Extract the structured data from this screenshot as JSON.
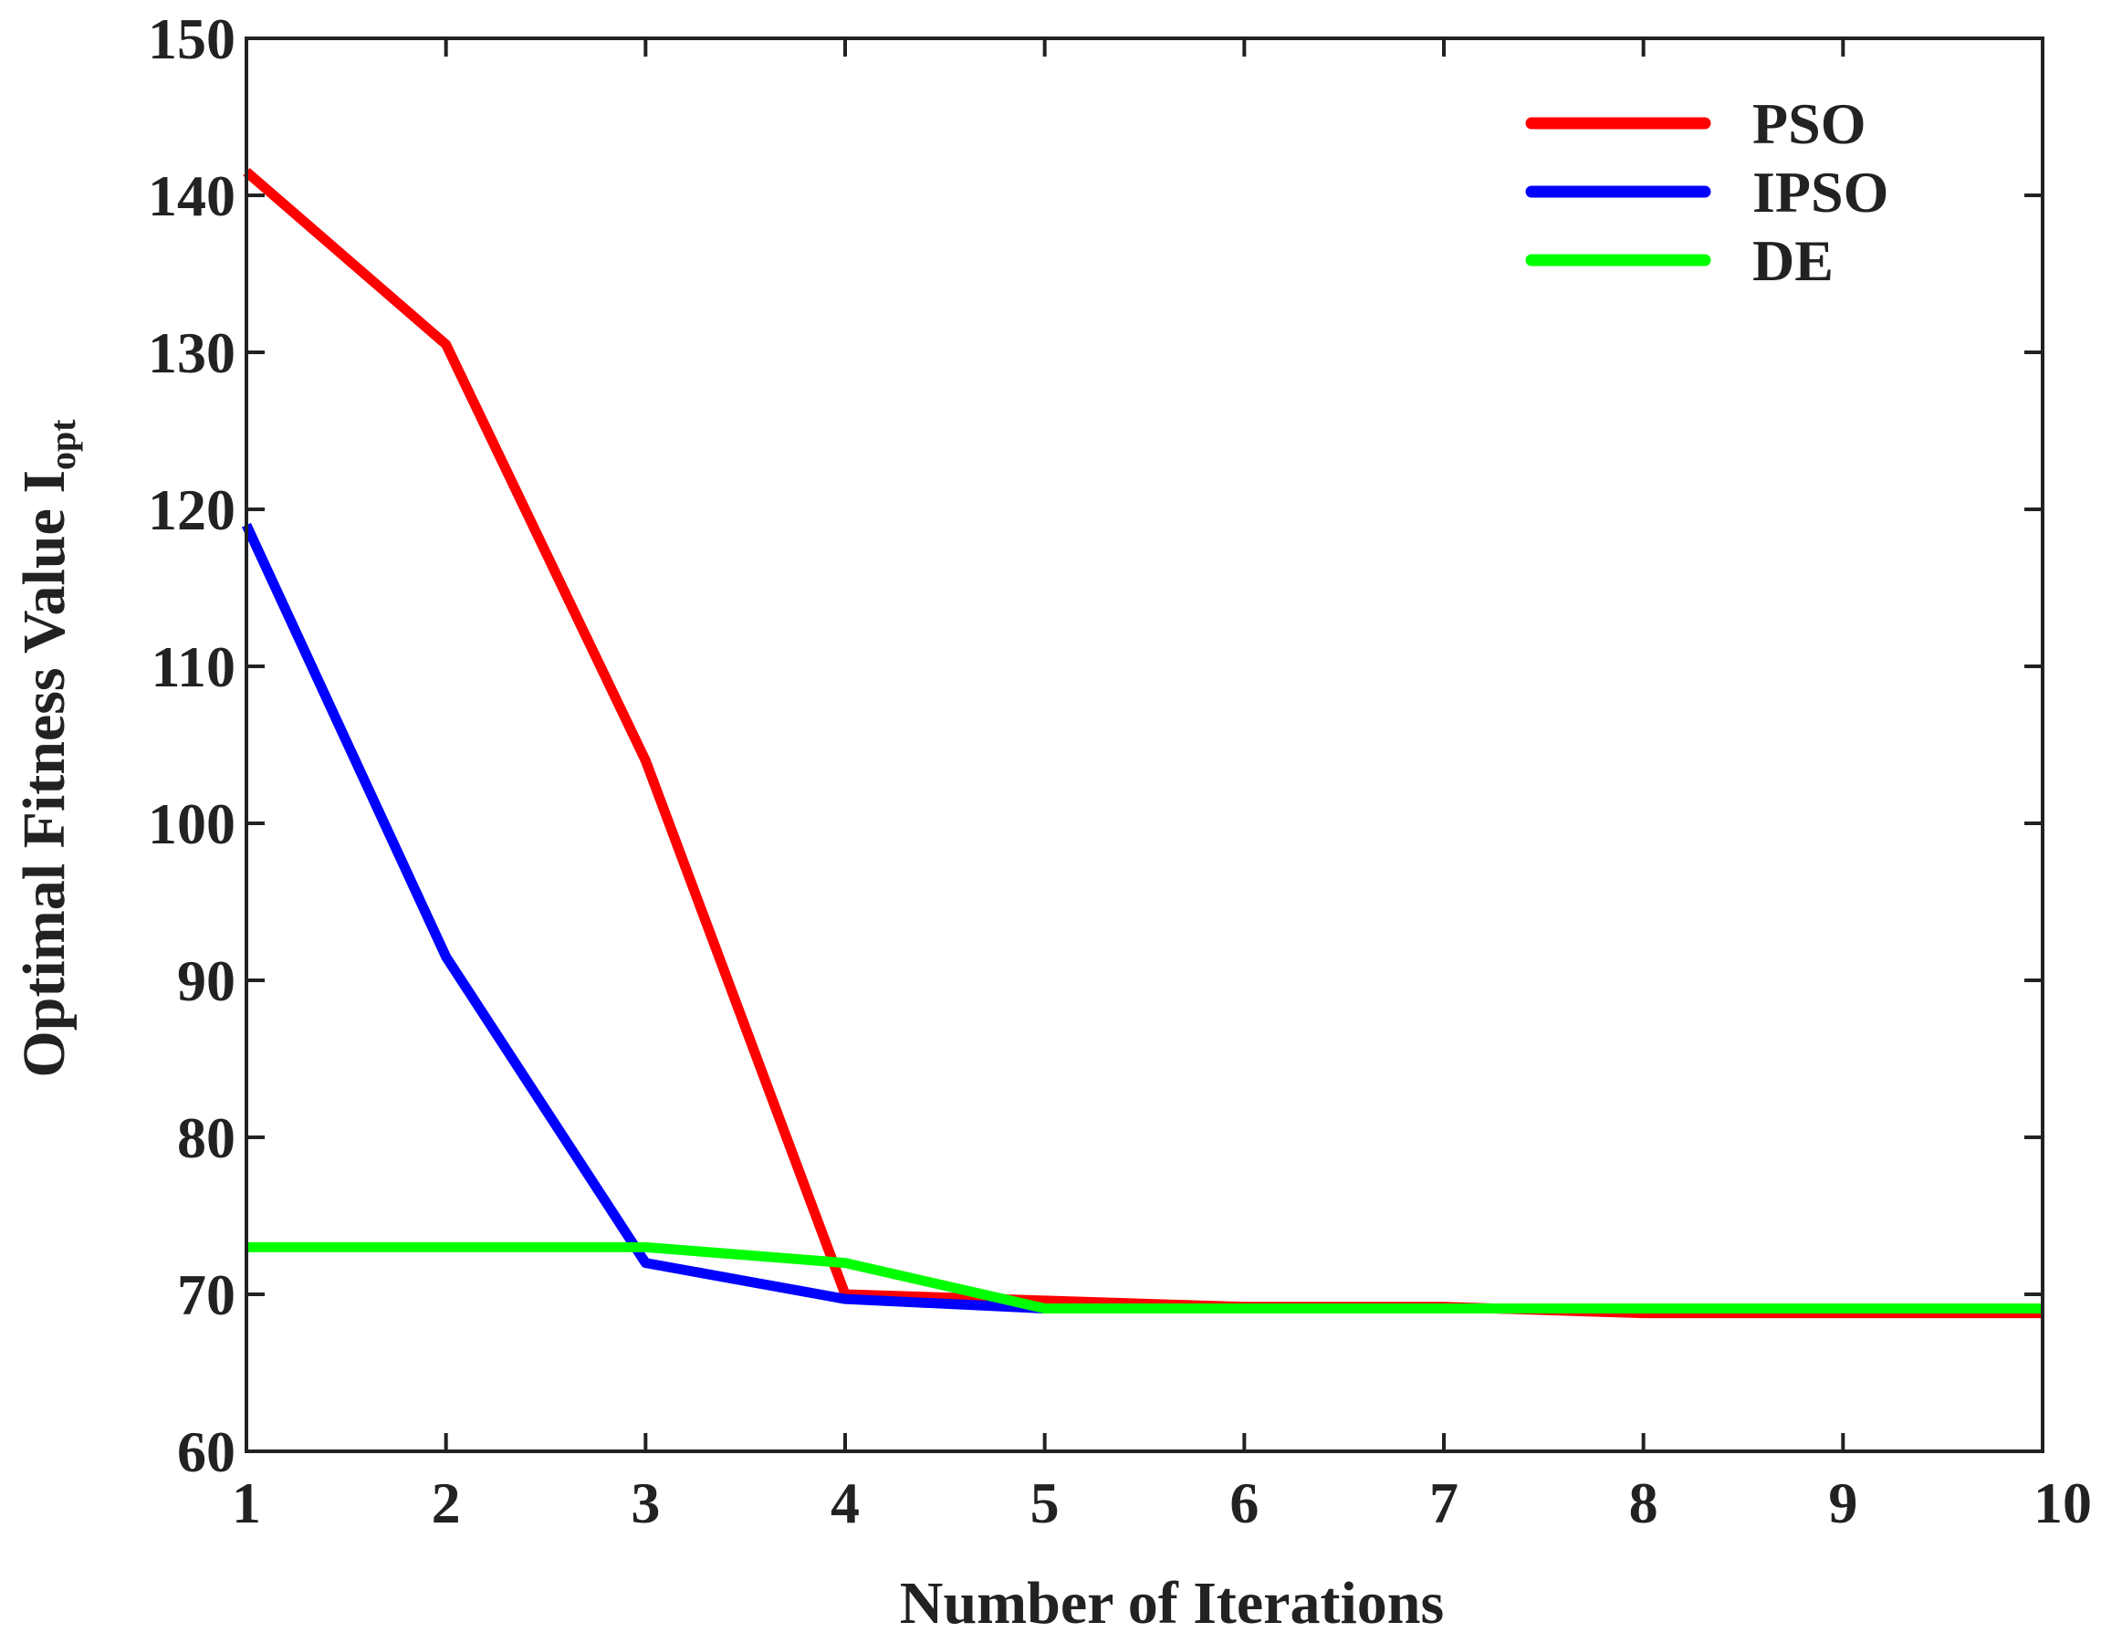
{
  "chart_data": {
    "type": "line",
    "title": "",
    "xlabel": "Number of Iterations",
    "ylabel": "Optimal Fitness Value I",
    "ylabel_subscript": "opt",
    "x": [
      1,
      2,
      3,
      4,
      5,
      6,
      7,
      8,
      9,
      10
    ],
    "xlim": [
      1,
      10
    ],
    "ylim": [
      60,
      150
    ],
    "xticks": [
      "1",
      "2",
      "3",
      "4",
      "5",
      "6",
      "7",
      "8",
      "9",
      "10"
    ],
    "yticks": [
      "60",
      "70",
      "80",
      "90",
      "100",
      "110",
      "120",
      "130",
      "140",
      "150"
    ],
    "grid": false,
    "legend_position": "top-right",
    "series": [
      {
        "name": "PSO",
        "color": "#ff0000",
        "values": [
          141.5,
          130.5,
          104,
          70,
          69.6,
          69.2,
          69.2,
          68.8,
          68.8,
          68.8
        ]
      },
      {
        "name": "IPSO",
        "color": "#0000ff",
        "values": [
          119,
          91.5,
          72,
          69.7,
          69.1,
          69.1,
          69.1,
          69.1,
          69.1,
          69.1
        ]
      },
      {
        "name": "DE",
        "color": "#00ff00",
        "values": [
          73,
          73,
          73,
          72,
          69.1,
          69.1,
          69.1,
          69.1,
          69.1,
          69.1
        ]
      }
    ]
  }
}
